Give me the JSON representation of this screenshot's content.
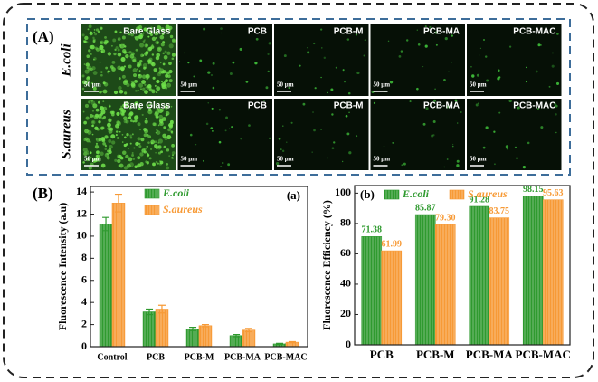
{
  "panel_a": {
    "label": "(A)",
    "rows": [
      "E.coli",
      "S.aureus"
    ],
    "columns": [
      "Bare Glass",
      "PCB",
      "PCB-M",
      "PCB-MA",
      "PCB-MAC"
    ],
    "scale_bar": "50 μm"
  },
  "chart_data": [
    {
      "type": "bar",
      "panel": "(B)",
      "subplot_label": "(a)",
      "y_label": "Fluorescence Intensity (a.u)",
      "categories": [
        "Control",
        "PCB",
        "PCB-M",
        "PCB-MA",
        "PCB-MAC"
      ],
      "series": [
        {
          "name": "E.coli",
          "color": "#2f9a2f",
          "values": [
            11.1,
            3.15,
            1.6,
            1.0,
            0.25
          ],
          "errors": [
            0.6,
            0.25,
            0.15,
            0.1,
            0.05
          ]
        },
        {
          "name": "S.aureus",
          "color": "#f79a36",
          "values": [
            13.0,
            3.4,
            1.9,
            1.5,
            0.4
          ],
          "errors": [
            0.8,
            0.35,
            0.1,
            0.15,
            0.05
          ]
        }
      ],
      "ylim": [
        0,
        14.5
      ],
      "yticks": [
        0,
        2,
        4,
        6,
        8,
        10,
        12,
        14
      ],
      "legend": "top-center"
    },
    {
      "type": "bar",
      "subplot_label": "(b)",
      "y_label": "Fluorescence Efficiency (%)",
      "categories": [
        "PCB",
        "PCB-M",
        "PCB-MA",
        "PCB-MAC"
      ],
      "series": [
        {
          "name": "E.coli",
          "color": "#2f9a2f",
          "values": [
            71.38,
            85.87,
            91.28,
            98.15
          ]
        },
        {
          "name": "S.aureus",
          "color": "#f79a36",
          "values": [
            61.99,
            79.3,
            83.75,
            95.63
          ],
          "value_labels": [
            "61.99",
            "79.30",
            "83.75",
            "95.63"
          ]
        }
      ],
      "ylim": [
        0,
        105
      ],
      "yticks": [
        0,
        20,
        40,
        60,
        80,
        100
      ],
      "legend": "top"
    }
  ]
}
